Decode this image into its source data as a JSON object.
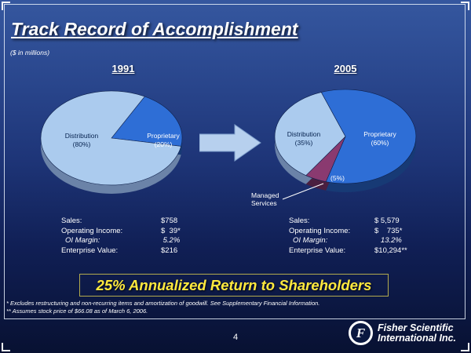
{
  "slide": {
    "title": "Track Record of Accomplishment",
    "subtitle": "($ in millions)",
    "banner": "25% Annualized Return to Shareholders",
    "footnotes": [
      "* Excludes restructuring and non-recurring items and amortization of goodwill. See Supplementary Financial Information.",
      "** Assumes stock price of $66.08 as of March 6, 2006."
    ],
    "page_number": "4",
    "logo": {
      "monogram": "F",
      "line1": "Fisher Scientific",
      "line2": "International Inc."
    }
  },
  "colors": {
    "background_top": "#35579f",
    "background_bottom": "#081132",
    "banner_text": "#ffe93e",
    "banner_border": "#b3ab4e",
    "text": "#ffffff"
  },
  "chart_data": [
    {
      "type": "pie",
      "title": "1991",
      "units": "$ in millions",
      "start_angle": -62,
      "slices": [
        {
          "label": "Proprietary",
          "pct_label": "(20%)",
          "value": 20,
          "color": "#2e6ed6",
          "depth_color": "#173a75"
        },
        {
          "label": "Distribution",
          "pct_label": "(80%)",
          "value": 80,
          "color": "#abcbee",
          "depth_color": "#6b83a8"
        }
      ]
    },
    {
      "type": "pie",
      "title": "2005",
      "units": "$ in millions",
      "start_angle": -110,
      "slices": [
        {
          "label": "Proprietary",
          "pct_label": "(60%)",
          "value": 60,
          "color": "#2e6ed6",
          "depth_color": "#173a75"
        },
        {
          "label": "Managed Services",
          "pct_label": "(5%)",
          "value": 5,
          "color": "#8a3a70",
          "depth_color": "#4a1f40"
        },
        {
          "label": "Distribution",
          "pct_label": "(35%)",
          "value": 35,
          "color": "#abcbee",
          "depth_color": "#6b83a8"
        }
      ]
    }
  ],
  "stats_1991": {
    "rows": [
      {
        "label": "Sales:",
        "value": "$758"
      },
      {
        "label": "Operating Income:",
        "value": "$  39*"
      },
      {
        "label": "OI Margin:",
        "value": " 5.2%"
      },
      {
        "label": "Enterprise Value:",
        "value": "$216"
      }
    ]
  },
  "stats_2005": {
    "rows": [
      {
        "label": "Sales:",
        "value": "$ 5,579"
      },
      {
        "label": "Operating Income:",
        "value": "$    735*"
      },
      {
        "label": "OI Margin:",
        "value": "   13.2%"
      },
      {
        "label": "Enterprise Value:",
        "value": "$10,294**"
      }
    ]
  }
}
